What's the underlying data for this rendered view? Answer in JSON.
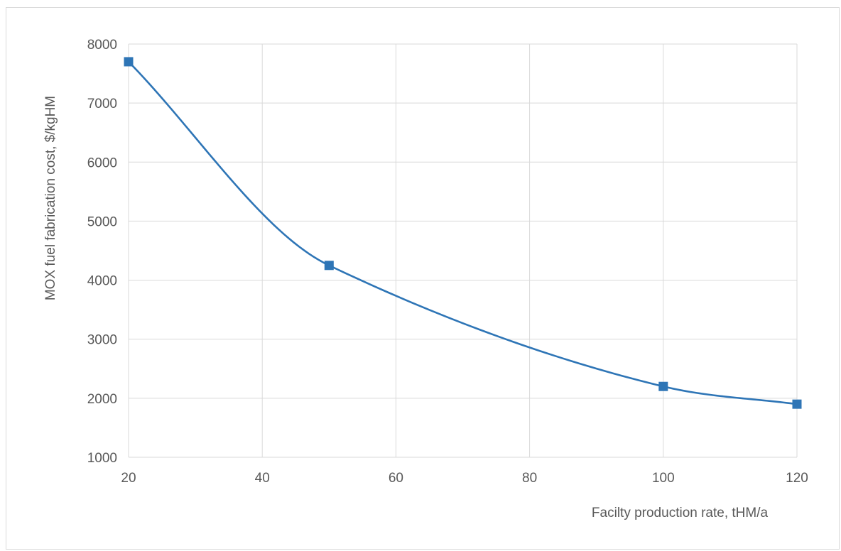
{
  "chart_data": {
    "type": "line",
    "title": "",
    "xlabel": "Facilty production rate, tHM/a",
    "ylabel": "MOX fuel fabrication cost, $/kgHM",
    "xlim": [
      20,
      120
    ],
    "ylim": [
      1000,
      8000
    ],
    "xticks": [
      20,
      40,
      60,
      80,
      100,
      120
    ],
    "yticks": [
      1000,
      2000,
      3000,
      4000,
      5000,
      6000,
      7000,
      8000
    ],
    "grid": true,
    "legend": "none",
    "series": [
      {
        "x": [
          20,
          50,
          100,
          120
        ],
        "y": [
          7700,
          4250,
          2200,
          1900
        ],
        "color": "#2e75b6",
        "marker": "square",
        "smooth": true
      }
    ]
  }
}
